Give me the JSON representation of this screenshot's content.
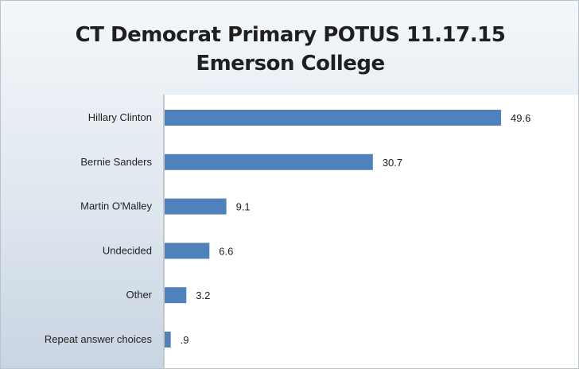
{
  "chart_data": {
    "type": "bar",
    "orientation": "horizontal",
    "title_lines": [
      "CT Democrat Primary POTUS  11.17.15",
      "Emerson College"
    ],
    "categories": [
      "Hillary Clinton",
      "Bernie Sanders",
      "Martin O'Malley",
      "Undecided",
      "Other",
      "Repeat answer choices"
    ],
    "values": [
      49.6,
      30.7,
      9.1,
      6.6,
      3.2,
      0.9
    ],
    "value_labels": [
      "49.6",
      "30.7",
      "9.1",
      "6.6",
      "3.2",
      ".9"
    ],
    "xlim": [
      0,
      60
    ],
    "grid": false,
    "legend": "none",
    "bar_color": "#4f81bd"
  }
}
